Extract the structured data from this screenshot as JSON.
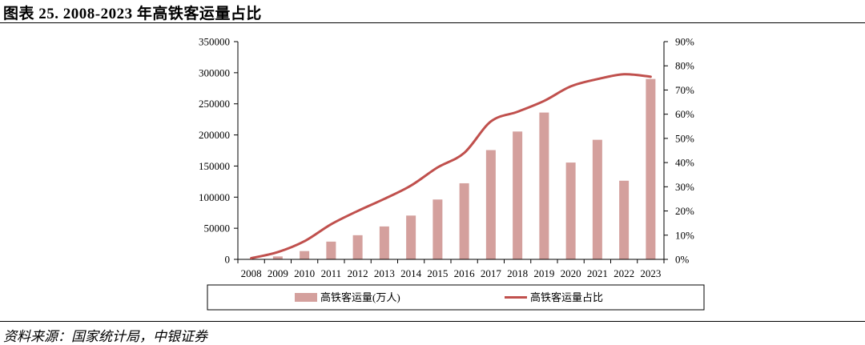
{
  "figure": {
    "title": "图表 25. 2008-2023 年高铁客运量占比",
    "source": "资料来源：国家统计局，中银证券"
  },
  "chart_data": {
    "type": "bar",
    "categories": [
      "2008",
      "2009",
      "2010",
      "2011",
      "2012",
      "2013",
      "2014",
      "2015",
      "2016",
      "2017",
      "2018",
      "2019",
      "2020",
      "2021",
      "2022",
      "2023"
    ],
    "series": [
      {
        "name": "高铁客运量(万人)",
        "type": "bar",
        "axis": "left",
        "color": "#D4A09D",
        "values": [
          700,
          4700,
          13300,
          28500,
          38800,
          52900,
          70400,
          96200,
          122300,
          175600,
          205500,
          236000,
          155600,
          192200,
          126400,
          290000
        ]
      },
      {
        "name": "高铁客运量占比",
        "type": "line",
        "axis": "right",
        "color": "#C0504D",
        "values": [
          0.5,
          3.0,
          7.5,
          14.5,
          20.0,
          25.0,
          30.5,
          38.0,
          44.0,
          57.0,
          61.0,
          65.5,
          71.5,
          74.5,
          76.5,
          75.5
        ]
      }
    ],
    "yleft": {
      "min": 0,
      "max": 350000,
      "step": 50000,
      "ticks": [
        "0",
        "50000",
        "100000",
        "150000",
        "200000",
        "250000",
        "300000",
        "350000"
      ]
    },
    "yright": {
      "min": 0,
      "max": 90,
      "step": 10,
      "ticks": [
        "0%",
        "10%",
        "20%",
        "30%",
        "40%",
        "50%",
        "60%",
        "70%",
        "80%",
        "90%"
      ]
    },
    "legend": {
      "position": "bottom"
    },
    "grid": false
  }
}
